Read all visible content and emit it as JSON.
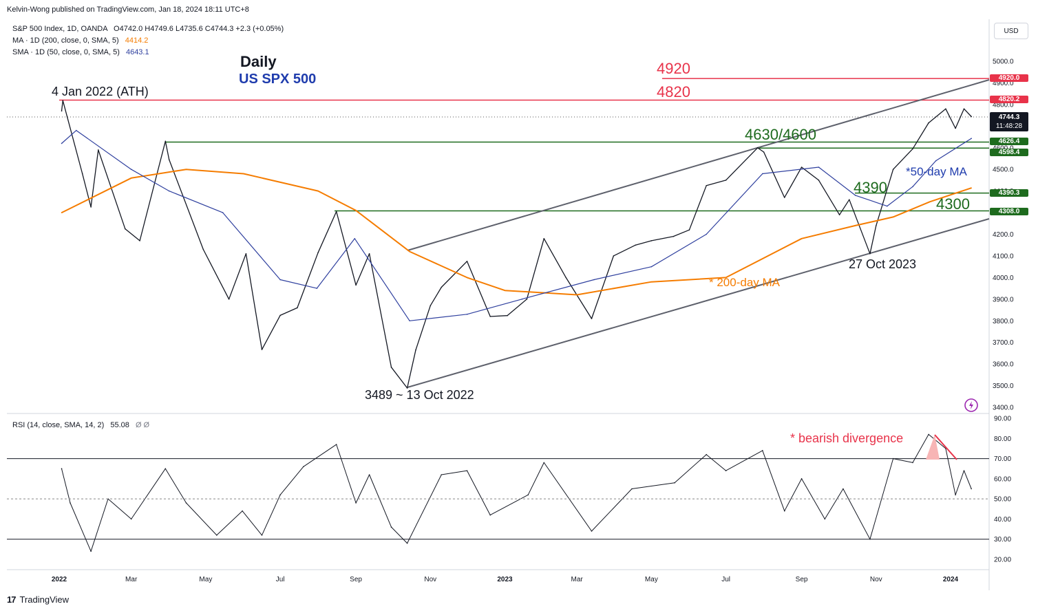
{
  "publisher": "Kelvin-Wong published on TradingView.com, Jan 18, 2024 18:11 UTC+8",
  "legend": {
    "main": "S&P 500 Index, 1D, OANDA",
    "ohlc": "O4742.0 H4749.6 L4735.6 C4744.3 +2.3 (+0.05%)",
    "ma200_label": "MA · 1D (200, close, 0, SMA, 5)",
    "ma200_value": "4414.2",
    "sma50_label": "SMA · 1D (50, close, 0, SMA, 5)",
    "sma50_value": "4643.1",
    "rsi_label": "RSI (14, close, SMA, 14, 2)",
    "rsi_value": "55.08",
    "rsi_extra": "Ø Ø"
  },
  "currency_button": "USD",
  "price_tags": {
    "t4920": "4920.0",
    "t4820": "4820.2",
    "tcur": "4744.3",
    "tcur_time": "11:48:28",
    "t4626": "4626.4",
    "t4598": "4598.4",
    "t4390": "4390.3",
    "t4308": "4308.0"
  },
  "annotations": {
    "daily": "Daily",
    "instrument": "US SPX 500",
    "ath": "4 Jan 2022 (ATH)",
    "r4920": "4920",
    "r4820": "4820",
    "s4630": "4630/4600",
    "s4390": "4390",
    "s4300": "4300",
    "ma50": "*50-day MA",
    "ma200": "* 200-day MA",
    "oct2023": "27 Oct 2023",
    "low2022": "3489 ~ 13 Oct 2022",
    "divergence": "* bearish divergence"
  },
  "footer": {
    "brand": "TradingView",
    "logo": "17"
  },
  "colors": {
    "resistance": "#e8334a",
    "support": "#1e6b1e",
    "ma200": "#f57c00",
    "ma50": "#2e3f9e",
    "label_blue": "#1f3cad"
  },
  "chart_data": {
    "type": "line",
    "title": "S&P 500 Index, 1D, OANDA",
    "xlabel": "",
    "ylabel": "USD",
    "ylim": [
      3400,
      5150
    ],
    "y_ticks": [
      "5000.0",
      "4900.0",
      "4800.0",
      "4700.0",
      "4600.0",
      "4500.0",
      "4400.0",
      "4300.0",
      "4200.0",
      "4100.0",
      "4000.0",
      "3900.0",
      "3800.0",
      "3700.0",
      "3600.0",
      "3500.0",
      "3400.0"
    ],
    "x_ticks": [
      "2022",
      "Mar",
      "May",
      "Jul",
      "Sep",
      "Nov",
      "2023",
      "Mar",
      "May",
      "Jul",
      "Sep",
      "Nov",
      "2024"
    ],
    "rsi_ylim": [
      15,
      90
    ],
    "rsi_ticks": [
      "90.00",
      "80.00",
      "70.00",
      "60.00",
      "50.00",
      "40.00",
      "30.00",
      "20.00"
    ],
    "rsi_levels": [
      70,
      50,
      30
    ],
    "horizontal_levels": [
      4920.0,
      4820.2,
      4626.4,
      4598.4,
      4390.3,
      4308.0
    ],
    "series": [
      {
        "name": "S&P 500 close (approx.)",
        "x": [
          "2022-01-03",
          "2022-01-04",
          "2022-01-20",
          "2022-01-27",
          "2022-02-02",
          "2022-02-24",
          "2022-03-08",
          "2022-03-29",
          "2022-04-01",
          "2022-04-29",
          "2022-05-20",
          "2022-06-03",
          "2022-06-16",
          "2022-07-01",
          "2022-07-15",
          "2022-08-01",
          "2022-08-16",
          "2022-09-01",
          "2022-09-12",
          "2022-09-30",
          "2022-10-13",
          "2022-10-20",
          "2022-11-01",
          "2022-11-10",
          "2022-12-01",
          "2022-12-20",
          "2023-01-03",
          "2023-01-19",
          "2023-02-02",
          "2023-02-20",
          "2023-03-13",
          "2023-03-31",
          "2023-04-18",
          "2023-05-01",
          "2023-05-19",
          "2023-06-01",
          "2023-06-15",
          "2023-07-01",
          "2023-07-27",
          "2023-08-01",
          "2023-08-18",
          "2023-09-01",
          "2023-09-15",
          "2023-10-02",
          "2023-10-10",
          "2023-10-27",
          "2023-11-01",
          "2023-11-15",
          "2023-12-01",
          "2023-12-14",
          "2023-12-28",
          "2024-01-05",
          "2024-01-12",
          "2024-01-18"
        ],
        "values": [
          4770,
          4818,
          4480,
          4326,
          4590,
          4225,
          4170,
          4630,
          4545,
          4130,
          3900,
          4110,
          3667,
          3825,
          3860,
          4115,
          4305,
          3965,
          4110,
          3585,
          3489,
          3665,
          3870,
          3955,
          4075,
          3820,
          3824,
          3900,
          4180,
          4000,
          3810,
          4100,
          4150,
          4170,
          4190,
          4220,
          4425,
          4450,
          4600,
          4580,
          4370,
          4510,
          4450,
          4290,
          4360,
          4110,
          4240,
          4500,
          4595,
          4715,
          4780,
          4690,
          4780,
          4744
        ]
      },
      {
        "name": "MA 200",
        "x": [
          "2022-01-03",
          "2022-03-01",
          "2022-04-15",
          "2022-06-01",
          "2022-08-01",
          "2022-09-01",
          "2022-10-15",
          "2022-12-01",
          "2023-01-01",
          "2023-03-01",
          "2023-05-01",
          "2023-07-01",
          "2023-09-01",
          "2023-10-15",
          "2023-11-15",
          "2023-12-15",
          "2024-01-18"
        ],
        "values": [
          4300,
          4460,
          4500,
          4480,
          4400,
          4310,
          4120,
          4000,
          3940,
          3920,
          3980,
          4000,
          4180,
          4240,
          4280,
          4350,
          4414
        ]
      },
      {
        "name": "SMA 50",
        "x": [
          "2022-01-03",
          "2022-01-15",
          "2022-03-01",
          "2022-04-01",
          "2022-05-15",
          "2022-07-01",
          "2022-07-31",
          "2022-08-31",
          "2022-10-15",
          "2022-12-01",
          "2023-01-15",
          "2023-03-15",
          "2023-05-01",
          "2023-06-15",
          "2023-07-31",
          "2023-09-15",
          "2023-10-15",
          "2023-11-10",
          "2023-12-01",
          "2023-12-20",
          "2024-01-18"
        ],
        "values": [
          4620,
          4680,
          4500,
          4400,
          4300,
          3990,
          3950,
          4180,
          3800,
          3830,
          3900,
          3990,
          4050,
          4200,
          4480,
          4510,
          4380,
          4330,
          4420,
          4540,
          4643
        ]
      },
      {
        "name": "RSI 14 (approx.)",
        "x": [
          "2022-01-03",
          "2022-01-10",
          "2022-01-27",
          "2022-02-10",
          "2022-03-01",
          "2022-03-29",
          "2022-04-15",
          "2022-05-10",
          "2022-05-31",
          "2022-06-16",
          "2022-07-01",
          "2022-07-20",
          "2022-08-16",
          "2022-09-01",
          "2022-09-12",
          "2022-09-30",
          "2022-10-13",
          "2022-11-10",
          "2022-12-01",
          "2022-12-20",
          "2023-01-20",
          "2023-02-02",
          "2023-03-13",
          "2023-04-15",
          "2023-05-20",
          "2023-06-15",
          "2023-07-01",
          "2023-07-31",
          "2023-08-18",
          "2023-09-01",
          "2023-09-20",
          "2023-10-05",
          "2023-10-27",
          "2023-11-15",
          "2023-12-01",
          "2023-12-14",
          "2023-12-28",
          "2024-01-05",
          "2024-01-12",
          "2024-01-18"
        ],
        "values": [
          65,
          48,
          24,
          50,
          40,
          65,
          48,
          32,
          44,
          32,
          52,
          66,
          77,
          48,
          62,
          36,
          28,
          62,
          64,
          42,
          52,
          68,
          34,
          55,
          58,
          72,
          64,
          74,
          44,
          60,
          40,
          55,
          30,
          70,
          68,
          82,
          75,
          52,
          64,
          55
        ]
      }
    ]
  }
}
